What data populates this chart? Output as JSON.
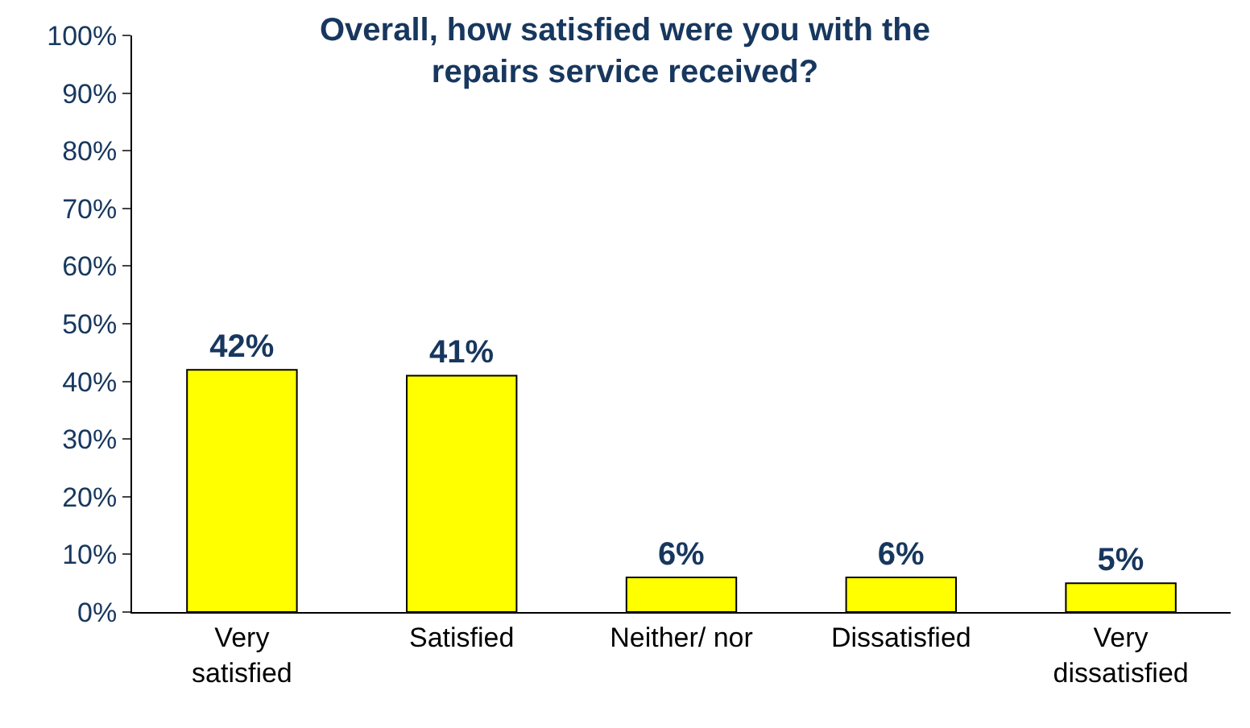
{
  "chart_data": {
    "type": "bar",
    "title": "Overall, how satisfied were you with the repairs service received?",
    "categories": [
      "Very satisfied",
      "Satisfied",
      "Neither/ nor",
      "Dissatisfied",
      "Very dissatisfied"
    ],
    "values": [
      42,
      41,
      6,
      6,
      5
    ],
    "value_labels": [
      "42%",
      "41%",
      "6%",
      "6%",
      "5%"
    ],
    "color": "#ffff00",
    "ylim": [
      0,
      100
    ],
    "yticks": [
      {
        "value": 0,
        "label": "0%"
      },
      {
        "value": 10,
        "label": "10%"
      },
      {
        "value": 20,
        "label": "20%"
      },
      {
        "value": 30,
        "label": "30%"
      },
      {
        "value": 40,
        "label": "40%"
      },
      {
        "value": 50,
        "label": "50%"
      },
      {
        "value": 60,
        "label": "60%"
      },
      {
        "value": 70,
        "label": "70%"
      },
      {
        "value": 80,
        "label": "80%"
      },
      {
        "value": 90,
        "label": "90%"
      },
      {
        "value": 100,
        "label": "100%"
      }
    ],
    "legend": false
  }
}
